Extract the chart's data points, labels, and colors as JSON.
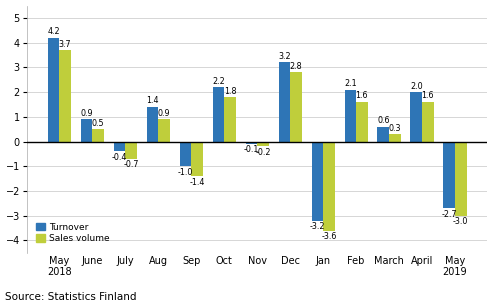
{
  "categories": [
    "May\n2018",
    "June",
    "July",
    "Aug",
    "Sep",
    "Oct",
    "Nov",
    "Dec",
    "Jan",
    "Feb",
    "March",
    "April",
    "May\n2019"
  ],
  "turnover": [
    4.2,
    0.9,
    -0.4,
    1.4,
    -1.0,
    2.2,
    -0.1,
    3.2,
    -3.2,
    2.1,
    0.6,
    2.0,
    -2.7
  ],
  "sales_volume": [
    3.7,
    0.5,
    -0.7,
    0.9,
    -1.4,
    1.8,
    -0.2,
    2.8,
    -3.6,
    1.6,
    0.3,
    1.6,
    -3.0
  ],
  "bar_color_turnover": "#2E75B6",
  "bar_color_sales": "#BFCE3B",
  "ylim": [
    -4.5,
    5.5
  ],
  "yticks": [
    -4,
    -3,
    -2,
    -1,
    0,
    1,
    2,
    3,
    4,
    5
  ],
  "source": "Source: Statistics Finland",
  "legend_turnover": "Turnover",
  "legend_sales": "Sales volume",
  "bar_width": 0.35,
  "label_fontsize": 5.8,
  "tick_fontsize": 7.0,
  "source_fontsize": 7.5
}
